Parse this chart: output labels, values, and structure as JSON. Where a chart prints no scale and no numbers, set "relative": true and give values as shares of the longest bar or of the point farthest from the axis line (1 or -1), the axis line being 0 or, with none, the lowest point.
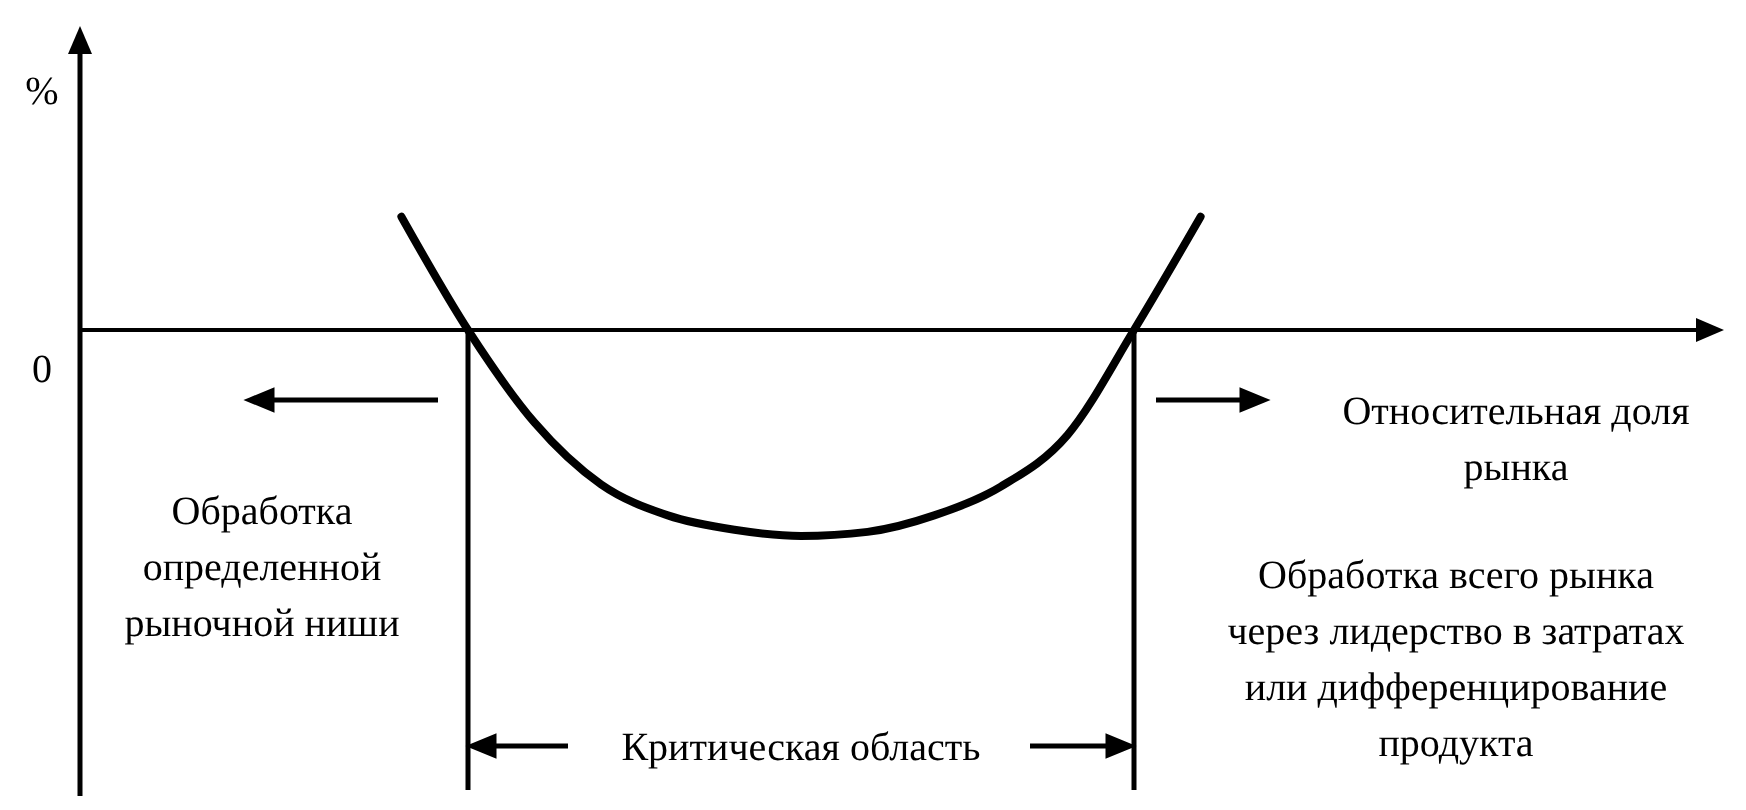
{
  "chart_data": {
    "type": "line",
    "relative": true,
    "xlabel": "Относительная доля\nрынка",
    "categories": [
      null,
      null,
      null,
      null,
      null,
      null,
      null,
      null,
      null,
      null,
      null,
      null,
      null
    ],
    "values": [
      0.55,
      0,
      -0.45,
      -0.75,
      -0.9,
      -0.97,
      -1,
      -0.98,
      -0.9,
      -0.76,
      -0.51,
      0,
      0.55
    ],
    "color": "#000000",
    "annotations": [
      "%",
      "0",
      "Обработка\nопределенной\nрыночной ниши",
      "Обработка всего рынка\nчерез лидерство в затратах\nили дифференцирование\nпродукта",
      "Критическая область"
    ]
  }
}
